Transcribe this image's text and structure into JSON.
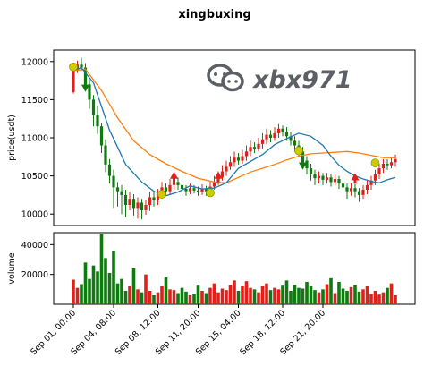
{
  "chart_data": {
    "type": "candlestick",
    "title": "xingbuxing",
    "watermark": "xbx971",
    "colors": {
      "up": "#e0201b",
      "down": "#0f7a0f",
      "ma_fast": "#1f77b4",
      "ma_slow": "#ff7f0e",
      "signal_marker": "#cccc00",
      "arrow_up": "#e0201b",
      "arrow_down": "#0f7a0f"
    },
    "price_panel": {
      "ylabel": "price(usdt)",
      "ylim": [
        9850,
        12150
      ],
      "yticks": [
        10000,
        10500,
        11000,
        11500,
        12000
      ],
      "moving_average_fast": [
        [
          0,
          11880
        ],
        [
          2,
          11920
        ],
        [
          5,
          11720
        ],
        [
          9,
          11100
        ],
        [
          13,
          10650
        ],
        [
          17,
          10420
        ],
        [
          20,
          10300
        ],
        [
          23,
          10240
        ],
        [
          26,
          10290
        ],
        [
          29,
          10370
        ],
        [
          32,
          10330
        ],
        [
          35,
          10340
        ],
        [
          38,
          10410
        ],
        [
          41,
          10600
        ],
        [
          44,
          10690
        ],
        [
          47,
          10780
        ],
        [
          50,
          10910
        ],
        [
          53,
          10990
        ],
        [
          56,
          11060
        ],
        [
          59,
          11020
        ],
        [
          62,
          10900
        ],
        [
          64,
          10760
        ],
        [
          66,
          10640
        ],
        [
          68,
          10560
        ],
        [
          70,
          10500
        ],
        [
          72,
          10460
        ],
        [
          74,
          10430
        ],
        [
          76,
          10410
        ],
        [
          78,
          10450
        ],
        [
          80,
          10480
        ]
      ],
      "moving_average_slow": [
        [
          0,
          11880
        ],
        [
          3,
          11900
        ],
        [
          7,
          11620
        ],
        [
          11,
          11260
        ],
        [
          15,
          10960
        ],
        [
          19,
          10780
        ],
        [
          23,
          10660
        ],
        [
          27,
          10560
        ],
        [
          31,
          10470
        ],
        [
          35,
          10420
        ],
        [
          38,
          10410
        ],
        [
          41,
          10480
        ],
        [
          44,
          10550
        ],
        [
          47,
          10600
        ],
        [
          50,
          10650
        ],
        [
          53,
          10710
        ],
        [
          56,
          10760
        ],
        [
          59,
          10790
        ],
        [
          62,
          10800
        ],
        [
          65,
          10810
        ],
        [
          68,
          10820
        ],
        [
          71,
          10800
        ],
        [
          74,
          10770
        ],
        [
          77,
          10740
        ],
        [
          80,
          10740
        ]
      ],
      "signal_markers": [
        [
          0,
          11930
        ],
        [
          22,
          10260
        ],
        [
          34,
          10280
        ],
        [
          56,
          10830
        ],
        [
          75,
          10670
        ]
      ],
      "arrows_up": [
        [
          25,
          10440
        ],
        [
          36,
          10440
        ],
        [
          70,
          10420
        ]
      ],
      "arrows_down": [
        [
          3,
          11720
        ],
        [
          57,
          10700
        ]
      ]
    },
    "volume_panel": {
      "ylabel": "volume",
      "ylim": [
        0,
        48000
      ],
      "yticks": [
        20000,
        40000
      ]
    },
    "x_axis": {
      "ticks": [
        {
          "index": 0,
          "label": "Sep 01, 00:00"
        },
        {
          "index": 10,
          "label": "Sep 04, 08:00"
        },
        {
          "index": 21,
          "label": "Sep 08, 12:00"
        },
        {
          "index": 31,
          "label": "Sep 11, 20:00"
        },
        {
          "index": 41,
          "label": "Sep 15, 04:00"
        },
        {
          "index": 52,
          "label": "Sep 18, 12:00"
        },
        {
          "index": 62,
          "label": "Sep 21, 20:00"
        }
      ],
      "count": 81
    },
    "candles": [
      [
        11600,
        11900,
        11580,
        11950
      ],
      [
        11900,
        11960,
        11850,
        12010
      ],
      [
        11960,
        11920,
        11880,
        12050
      ],
      [
        11920,
        11700,
        11650,
        11980
      ],
      [
        11700,
        11500,
        11380,
        11760
      ],
      [
        11500,
        11300,
        11150,
        11560
      ],
      [
        11300,
        11150,
        11050,
        11420
      ],
      [
        11150,
        10900,
        10800,
        11200
      ],
      [
        10900,
        10650,
        10550,
        10980
      ],
      [
        10650,
        10500,
        10400,
        10720
      ],
      [
        10500,
        10350,
        10080,
        10580
      ],
      [
        10350,
        10300,
        10100,
        10420
      ],
      [
        10300,
        10250,
        10000,
        10380
      ],
      [
        10250,
        10120,
        9960,
        10320
      ],
      [
        10120,
        10200,
        10050,
        10290
      ],
      [
        10200,
        10080,
        9980,
        10260
      ],
      [
        10080,
        10150,
        9940,
        10220
      ],
      [
        10150,
        10050,
        9930,
        10200
      ],
      [
        10050,
        10120,
        9990,
        10180
      ],
      [
        10120,
        10220,
        10040,
        10290
      ],
      [
        10220,
        10180,
        10100,
        10300
      ],
      [
        10180,
        10260,
        10120,
        10330
      ],
      [
        10260,
        10350,
        10200,
        10420
      ],
      [
        10350,
        10300,
        10240,
        10400
      ],
      [
        10300,
        10380,
        10260,
        10460
      ],
      [
        10380,
        10420,
        10330,
        10500
      ],
      [
        10420,
        10380,
        10320,
        10480
      ],
      [
        10380,
        10330,
        10260,
        10420
      ],
      [
        10330,
        10300,
        10240,
        10380
      ],
      [
        10300,
        10340,
        10260,
        10400
      ],
      [
        10340,
        10310,
        10270,
        10380
      ],
      [
        10310,
        10290,
        10240,
        10360
      ],
      [
        10290,
        10330,
        10250,
        10390
      ],
      [
        10330,
        10300,
        10240,
        10370
      ],
      [
        10300,
        10360,
        10260,
        10430
      ],
      [
        10360,
        10420,
        10320,
        10500
      ],
      [
        10420,
        10480,
        10380,
        10560
      ],
      [
        10480,
        10560,
        10440,
        10640
      ],
      [
        10560,
        10620,
        10500,
        10700
      ],
      [
        10620,
        10680,
        10580,
        10760
      ],
      [
        10680,
        10740,
        10620,
        10820
      ],
      [
        10740,
        10700,
        10650,
        10800
      ],
      [
        10700,
        10760,
        10660,
        10840
      ],
      [
        10760,
        10820,
        10700,
        10900
      ],
      [
        10820,
        10880,
        10760,
        10960
      ],
      [
        10880,
        10860,
        10800,
        10940
      ],
      [
        10860,
        10920,
        10820,
        11000
      ],
      [
        10920,
        10980,
        10860,
        11060
      ],
      [
        10980,
        11040,
        10920,
        11120
      ],
      [
        11040,
        11000,
        10940,
        11100
      ],
      [
        11000,
        11060,
        10960,
        11140
      ],
      [
        11060,
        11120,
        11000,
        11180
      ],
      [
        11120,
        11080,
        11020,
        11160
      ],
      [
        11080,
        11020,
        10960,
        11140
      ],
      [
        11020,
        10960,
        10900,
        11080
      ],
      [
        10960,
        10900,
        10820,
        11020
      ],
      [
        10900,
        10820,
        10740,
        10960
      ],
      [
        10820,
        10700,
        10620,
        10880
      ],
      [
        10700,
        10600,
        10520,
        10760
      ],
      [
        10600,
        10520,
        10440,
        10660
      ],
      [
        10520,
        10470,
        10380,
        10580
      ],
      [
        10470,
        10500,
        10400,
        10560
      ],
      [
        10500,
        10450,
        10380,
        10540
      ],
      [
        10450,
        10480,
        10400,
        10540
      ],
      [
        10480,
        10420,
        10360,
        10520
      ],
      [
        10420,
        10460,
        10380,
        10520
      ],
      [
        10460,
        10400,
        10330,
        10500
      ],
      [
        10400,
        10350,
        10280,
        10440
      ],
      [
        10350,
        10300,
        10200,
        10400
      ],
      [
        10300,
        10340,
        10240,
        10410
      ],
      [
        10340,
        10300,
        10220,
        10390
      ],
      [
        10300,
        10250,
        10160,
        10340
      ],
      [
        10250,
        10320,
        10200,
        10380
      ],
      [
        10320,
        10380,
        10260,
        10440
      ],
      [
        10380,
        10440,
        10320,
        10500
      ],
      [
        10440,
        10520,
        10380,
        10580
      ],
      [
        10520,
        10600,
        10460,
        10660
      ],
      [
        10600,
        10660,
        10540,
        10720
      ],
      [
        10660,
        10640,
        10580,
        10720
      ],
      [
        10640,
        10680,
        10600,
        10740
      ],
      [
        10680,
        10720,
        10620,
        10780
      ]
    ],
    "volumes": [
      16500,
      11000,
      13500,
      28000,
      17000,
      26000,
      22000,
      47000,
      31000,
      21000,
      36000,
      14000,
      17000,
      9000,
      12000,
      24000,
      10000,
      8000,
      20000,
      9000,
      6000,
      8000,
      12000,
      18000,
      10000,
      9500,
      7500,
      11000,
      8500,
      6000,
      7000,
      12500,
      9000,
      7500,
      11000,
      14000,
      8000,
      10500,
      9500,
      13000,
      16000,
      9000,
      12000,
      15500,
      11000,
      10000,
      8000,
      12000,
      14000,
      9500,
      11000,
      10000,
      12500,
      16000,
      9000,
      13000,
      11000,
      10500,
      15000,
      12000,
      9500,
      8000,
      10000,
      13500,
      17500,
      7500,
      15000,
      10500,
      9000,
      11500,
      13000,
      8500,
      10000,
      12000,
      7000,
      9000,
      6500,
      8000,
      11000,
      14000,
      6000
    ]
  }
}
